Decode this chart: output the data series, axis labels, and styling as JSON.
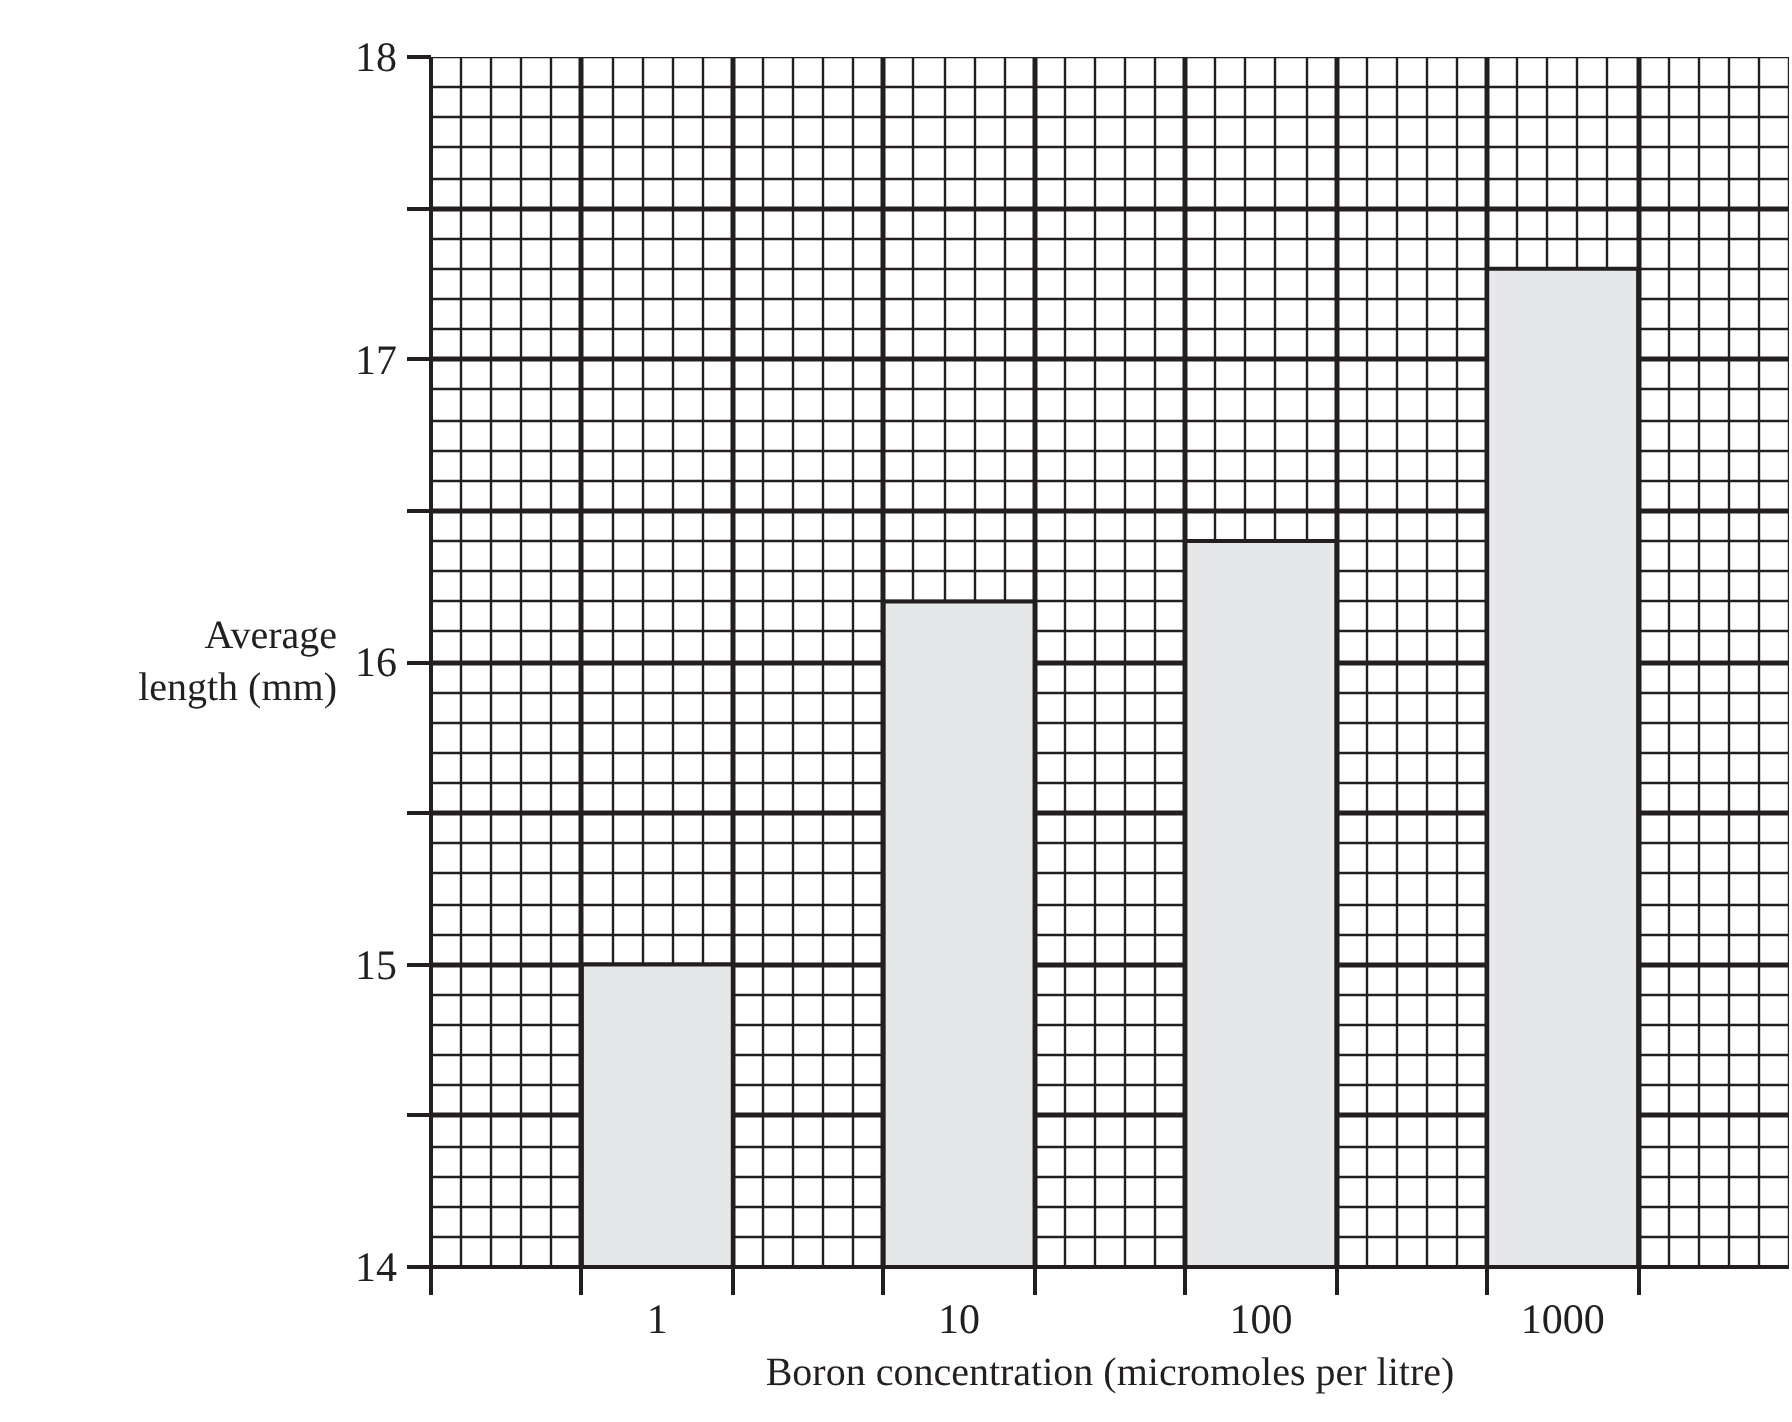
{
  "chart_data": {
    "type": "bar",
    "xlabel": "Boron concentration (micromoles per litre)",
    "ylabel": "Average length (mm)",
    "categories": [
      "1",
      "10",
      "100",
      "1000"
    ],
    "values": [
      15.0,
      16.2,
      16.4,
      17.3
    ],
    "color": "#e6e7e8",
    "ylim": [
      14,
      18
    ],
    "yticks": [
      14,
      {
        "value": 14.5,
        "label": null
      },
      15,
      {
        "value": 15.5,
        "label": null
      },
      16,
      {
        "value": 16.5,
        "label": null
      },
      17,
      {
        "value": 17.5,
        "label": null
      },
      18
    ],
    "grid": true
  }
}
